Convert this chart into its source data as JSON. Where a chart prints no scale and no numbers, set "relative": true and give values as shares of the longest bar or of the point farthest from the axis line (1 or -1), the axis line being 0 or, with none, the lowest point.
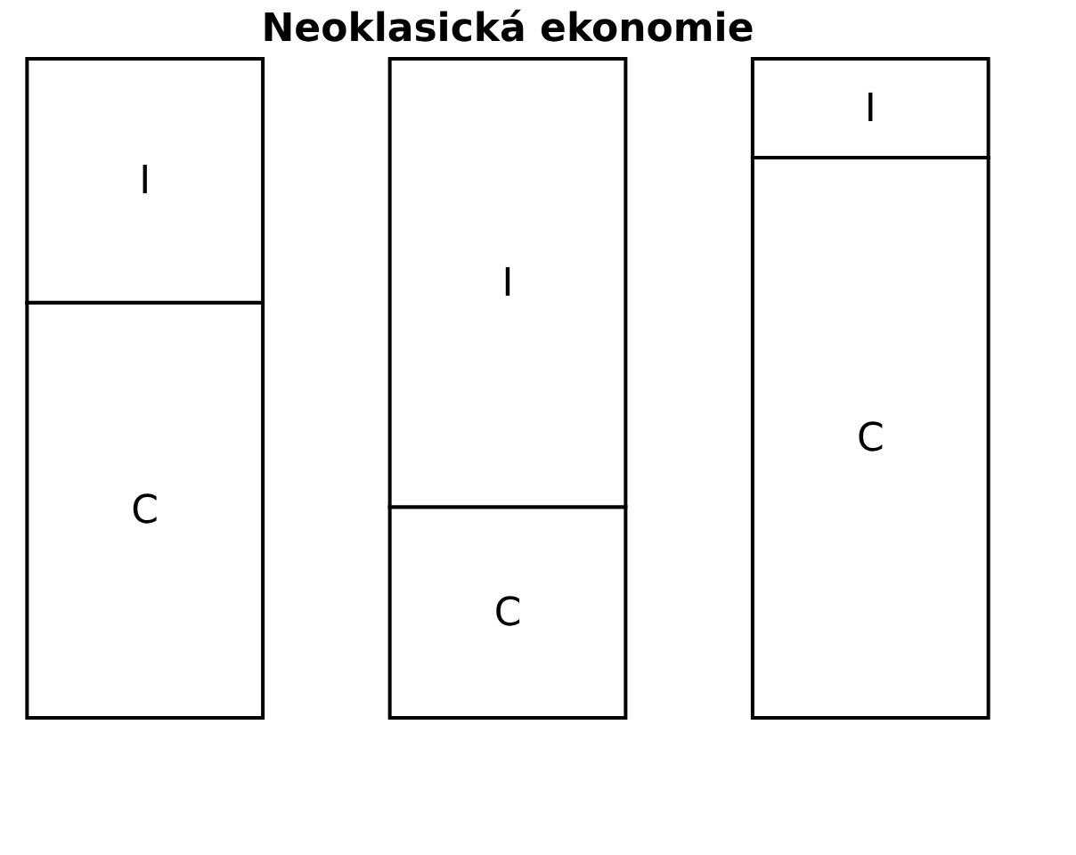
{
  "chart_data": {
    "type": "bar",
    "title": "Neoklasická ekonomie",
    "categories": [
      null,
      null,
      null
    ],
    "stacked": true,
    "relative": true,
    "legend": false,
    "series": [
      {
        "name": "C",
        "color": "#ffffff",
        "values": [
          0.63,
          0.32,
          0.85
        ]
      },
      {
        "name": "I",
        "color": "#ffffff",
        "values": [
          0.37,
          0.68,
          0.15
        ]
      }
    ]
  }
}
